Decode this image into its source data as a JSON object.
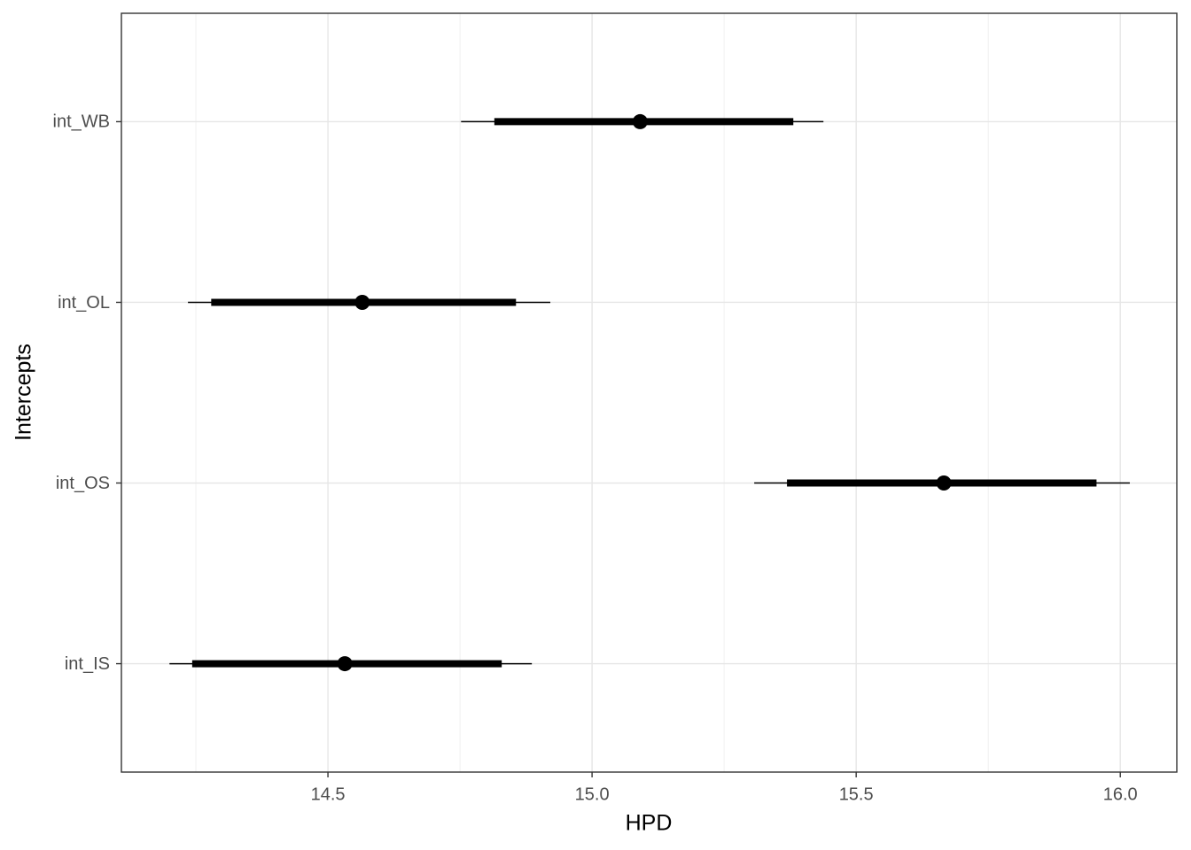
{
  "chart_data": {
    "type": "interval",
    "xlabel": "HPD",
    "ylabel": "Intercepts",
    "categories": [
      "int_IS",
      "int_OS",
      "int_OL",
      "int_WB"
    ],
    "estimate": [
      14.532,
      15.666,
      14.565,
      15.091
    ],
    "inner_low": [
      14.243,
      15.369,
      14.279,
      14.815
    ],
    "inner_high": [
      14.829,
      15.955,
      14.856,
      15.381
    ],
    "outer_low": [
      14.2,
      15.307,
      14.235,
      14.752
    ],
    "outer_high": [
      14.886,
      16.018,
      14.921,
      15.438
    ],
    "color": "#000000",
    "xlim": [
      14.109,
      16.107
    ],
    "xticks": [
      14.5,
      {
        "value": 15,
        "label": "15.0"
      },
      15.5,
      {
        "value": 16,
        "label": "16.0"
      }
    ],
    "xminorticks": [
      14.25,
      14.75,
      15.25,
      15.75
    ],
    "grid": true
  }
}
